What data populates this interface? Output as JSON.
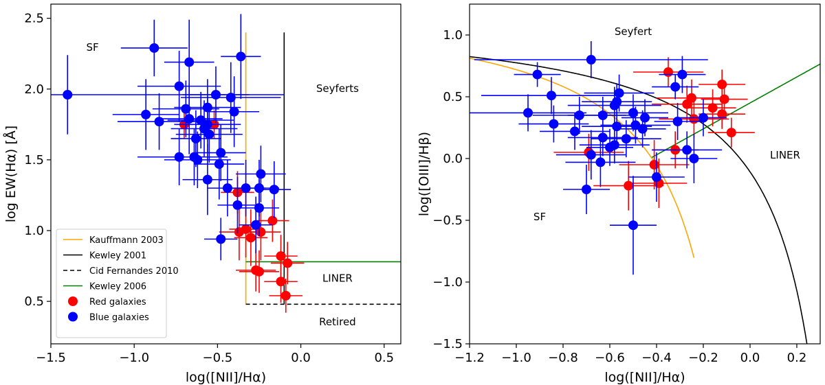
{
  "colors": {
    "red": "#ff0000",
    "blue": "#0000ff",
    "kauffmann": "#ffa500",
    "kewley2001": "#000000",
    "cid": "#000000",
    "kewley2006": "#008000"
  },
  "chart_data": [
    {
      "type": "scatter",
      "xlabel": "log([NII]/Hα)",
      "ylabel": "log EW(Hα) [Å]",
      "xlim": [
        -1.5,
        0.6
      ],
      "ylim": [
        0.2,
        2.6
      ],
      "xticks": [
        -1.5,
        -1.0,
        -0.5,
        0.0,
        0.5
      ],
      "xtick_labels": [
        "−1.5",
        "−1.0",
        "−0.5",
        "0.0",
        "0.5"
      ],
      "yticks": [
        0.5,
        1.0,
        1.5,
        2.0,
        2.5
      ],
      "ytick_labels": [
        "0.5",
        "1.0",
        "1.5",
        "2.0",
        "2.5"
      ],
      "regions": [
        {
          "text": "SF",
          "x": -1.25,
          "y": 2.27
        },
        {
          "text": "Seyferts",
          "x": 0.22,
          "y": 1.98
        },
        {
          "text": "LINER",
          "x": 0.22,
          "y": 0.64
        },
        {
          "text": "Retired",
          "x": 0.22,
          "y": 0.33
        }
      ],
      "lines": [
        {
          "name": "Kauffmann 2003",
          "color": "#ffa500",
          "dash": "",
          "points": [
            [
              -0.33,
              2.4
            ],
            [
              -0.33,
              0.48
            ]
          ]
        },
        {
          "name": "Kewley 2001",
          "color": "#000000",
          "dash": "",
          "points": [
            [
              -0.1,
              2.4
            ],
            [
              -0.1,
              0.48
            ]
          ]
        },
        {
          "name": "Cid Fernandes 2010",
          "color": "#000000",
          "dash": "6,4",
          "points": [
            [
              -0.33,
              0.48
            ],
            [
              0.6,
              0.48
            ]
          ]
        },
        {
          "name": "Kewley 2006",
          "color": "#008000",
          "dash": "",
          "points": [
            [
              -0.33,
              0.78
            ],
            [
              0.6,
              0.78
            ]
          ]
        }
      ],
      "legend": {
        "position": "lower-left",
        "entries": [
          {
            "label": "Kauffmann 2003",
            "kind": "line",
            "color": "#ffa500",
            "dash": ""
          },
          {
            "label": "Kewley 2001",
            "kind": "line",
            "color": "#000000",
            "dash": ""
          },
          {
            "label": "Cid Fernandes 2010",
            "kind": "line",
            "color": "#000000",
            "dash": "6,4"
          },
          {
            "label": "Kewley 2006",
            "kind": "line",
            "color": "#008000",
            "dash": ""
          },
          {
            "label": "Red galaxies",
            "kind": "marker",
            "color": "#ff0000"
          },
          {
            "label": "Blue galaxies",
            "kind": "marker",
            "color": "#0000ff"
          }
        ]
      },
      "series": [
        {
          "name": "Red galaxies",
          "color": "#ff0000",
          "points": [
            {
              "x": -0.7,
              "y": 1.75,
              "xerr": 0.05,
              "yerr": 0.1
            },
            {
              "x": -0.52,
              "y": 1.75,
              "xerr": 0.05,
              "yerr": 0.1
            },
            {
              "x": -0.38,
              "y": 1.27,
              "xerr": 0.1,
              "yerr": 0.15
            },
            {
              "x": -0.33,
              "y": 1.01,
              "xerr": 0.1,
              "yerr": 0.2
            },
            {
              "x": -0.37,
              "y": 0.99,
              "xerr": 0.12,
              "yerr": 0.2
            },
            {
              "x": -0.3,
              "y": 0.95,
              "xerr": 0.1,
              "yerr": 0.2
            },
            {
              "x": -0.24,
              "y": 0.99,
              "xerr": 0.12,
              "yerr": 0.2
            },
            {
              "x": -0.17,
              "y": 1.07,
              "xerr": 0.1,
              "yerr": 0.15
            },
            {
              "x": -0.27,
              "y": 0.72,
              "xerr": 0.12,
              "yerr": 0.15
            },
            {
              "x": -0.25,
              "y": 0.71,
              "xerr": 0.12,
              "yerr": 0.15
            },
            {
              "x": -0.12,
              "y": 0.82,
              "xerr": 0.1,
              "yerr": 0.15
            },
            {
              "x": -0.08,
              "y": 0.77,
              "xerr": 0.1,
              "yerr": 0.15
            },
            {
              "x": -0.12,
              "y": 0.64,
              "xerr": 0.1,
              "yerr": 0.15
            },
            {
              "x": -0.09,
              "y": 0.54,
              "xerr": 0.1,
              "yerr": 0.12
            }
          ]
        },
        {
          "name": "Blue galaxies",
          "color": "#0000ff",
          "points": [
            {
              "x": -1.4,
              "y": 1.96,
              "xerr": 1.3,
              "yerr": 0.28
            },
            {
              "x": -0.88,
              "y": 2.29,
              "xerr": 0.2,
              "yerr": 0.2
            },
            {
              "x": -0.67,
              "y": 2.19,
              "xerr": 0.15,
              "yerr": 0.3
            },
            {
              "x": -0.36,
              "y": 2.23,
              "xerr": 0.12,
              "yerr": 0.3
            },
            {
              "x": -0.73,
              "y": 2.02,
              "xerr": 0.25,
              "yerr": 0.25
            },
            {
              "x": -0.51,
              "y": 1.96,
              "xerr": 0.2,
              "yerr": 0.2
            },
            {
              "x": -0.42,
              "y": 1.94,
              "xerr": 0.3,
              "yerr": 0.25
            },
            {
              "x": -0.93,
              "y": 1.82,
              "xerr": 0.2,
              "yerr": 0.25
            },
            {
              "x": -0.69,
              "y": 1.86,
              "xerr": 0.2,
              "yerr": 0.2
            },
            {
              "x": -0.56,
              "y": 1.87,
              "xerr": 0.2,
              "yerr": 0.2
            },
            {
              "x": -0.4,
              "y": 1.84,
              "xerr": 0.15,
              "yerr": 0.25
            },
            {
              "x": -0.85,
              "y": 1.77,
              "xerr": 0.25,
              "yerr": 0.2
            },
            {
              "x": -0.67,
              "y": 1.79,
              "xerr": 0.2,
              "yerr": 0.25
            },
            {
              "x": -0.6,
              "y": 1.78,
              "xerr": 0.2,
              "yerr": 0.2
            },
            {
              "x": -0.56,
              "y": 1.75,
              "xerr": 0.2,
              "yerr": 0.2
            },
            {
              "x": -0.58,
              "y": 1.72,
              "xerr": 0.2,
              "yerr": 0.2
            },
            {
              "x": -0.63,
              "y": 1.65,
              "xerr": 0.15,
              "yerr": 0.2
            },
            {
              "x": -0.55,
              "y": 1.68,
              "xerr": 0.2,
              "yerr": 0.2
            },
            {
              "x": -0.48,
              "y": 1.55,
              "xerr": 0.15,
              "yerr": 0.2
            },
            {
              "x": -0.73,
              "y": 1.52,
              "xerr": 0.25,
              "yerr": 0.2
            },
            {
              "x": -0.64,
              "y": 1.52,
              "xerr": 0.2,
              "yerr": 0.2
            },
            {
              "x": -0.62,
              "y": 1.5,
              "xerr": 0.2,
              "yerr": 0.2
            },
            {
              "x": -0.49,
              "y": 1.47,
              "xerr": 0.15,
              "yerr": 0.25
            },
            {
              "x": -0.56,
              "y": 1.36,
              "xerr": 0.15,
              "yerr": 0.25
            },
            {
              "x": -0.24,
              "y": 1.4,
              "xerr": 0.15,
              "yerr": 0.2
            },
            {
              "x": -0.44,
              "y": 1.3,
              "xerr": 0.12,
              "yerr": 0.2
            },
            {
              "x": -0.33,
              "y": 1.3,
              "xerr": 0.12,
              "yerr": 0.2
            },
            {
              "x": -0.25,
              "y": 1.3,
              "xerr": 0.12,
              "yerr": 0.2
            },
            {
              "x": -0.16,
              "y": 1.29,
              "xerr": 0.1,
              "yerr": 0.2
            },
            {
              "x": -0.38,
              "y": 1.18,
              "xerr": 0.12,
              "yerr": 0.2
            },
            {
              "x": -0.25,
              "y": 1.16,
              "xerr": 0.12,
              "yerr": 0.2
            },
            {
              "x": -0.27,
              "y": 1.04,
              "xerr": 0.1,
              "yerr": 0.2
            },
            {
              "x": -0.48,
              "y": 0.94,
              "xerr": 0.1,
              "yerr": 0.15
            }
          ]
        }
      ]
    },
    {
      "type": "scatter",
      "xlabel": "log([NII]/Hα)",
      "ylabel": "log([OIII]/Hβ)",
      "xlim": [
        -1.2,
        0.3
      ],
      "ylim": [
        -1.5,
        1.25
      ],
      "xticks": [
        -1.2,
        -1.0,
        -0.8,
        -0.6,
        -0.4,
        -0.2,
        0.0,
        0.2
      ],
      "xtick_labels": [
        "−1.2",
        "−1.0",
        "−0.8",
        "−0.6",
        "−0.4",
        "−0.2",
        "0.0",
        "0.2"
      ],
      "yticks": [
        -1.5,
        -1.0,
        -0.5,
        0.0,
        0.5,
        1.0
      ],
      "ytick_labels": [
        "−1.5",
        "−1.0",
        "−0.5",
        "0.0",
        "0.5",
        "1.0"
      ],
      "regions": [
        {
          "text": "Seyfert",
          "x": -0.5,
          "y": 1.0
        },
        {
          "text": "SF",
          "x": -0.9,
          "y": -0.5
        },
        {
          "text": "LINER",
          "x": 0.15,
          "y": 0.0
        }
      ],
      "curves": [
        {
          "name": "Kauffmann 2003",
          "color": "#ffa500",
          "formula": "0.61/(x-0.05)+1.3",
          "x_from": -1.2,
          "x_to": -0.24
        },
        {
          "name": "Kewley 2001",
          "color": "#000000",
          "formula": "0.61/(x-0.47)+1.19",
          "x_from": -1.2,
          "x_to": 0.25
        },
        {
          "name": "Kewley 2006",
          "color": "#008000",
          "formula": "1.05*x+0.45",
          "x_from": -0.42,
          "x_to": 0.3
        }
      ],
      "series": [
        {
          "name": "Red galaxies",
          "color": "#ff0000",
          "points": [
            {
              "x": -0.35,
              "y": 0.7,
              "xerr": 0.15,
              "yerr": 0.12
            },
            {
              "x": -0.27,
              "y": 0.44,
              "xerr": 0.15,
              "yerr": 0.15
            },
            {
              "x": -0.25,
              "y": 0.49,
              "xerr": 0.15,
              "yerr": 0.15
            },
            {
              "x": -0.24,
              "y": 0.32,
              "xerr": 0.15,
              "yerr": 0.15
            },
            {
              "x": -0.16,
              "y": 0.41,
              "xerr": 0.1,
              "yerr": 0.15
            },
            {
              "x": -0.12,
              "y": 0.6,
              "xerr": 0.1,
              "yerr": 0.12
            },
            {
              "x": -0.11,
              "y": 0.48,
              "xerr": 0.1,
              "yerr": 0.12
            },
            {
              "x": -0.12,
              "y": 0.36,
              "xerr": 0.1,
              "yerr": 0.12
            },
            {
              "x": -0.08,
              "y": 0.21,
              "xerr": 0.1,
              "yerr": 0.12
            },
            {
              "x": -0.32,
              "y": 0.07,
              "xerr": 0.1,
              "yerr": 0.15
            },
            {
              "x": -0.69,
              "y": 0.05,
              "xerr": 0.15,
              "yerr": 0.15
            },
            {
              "x": -0.41,
              "y": -0.05,
              "xerr": 0.15,
              "yerr": 0.2
            },
            {
              "x": -0.52,
              "y": -0.22,
              "xerr": 0.15,
              "yerr": 0.2
            },
            {
              "x": -0.39,
              "y": -0.2,
              "xerr": 0.12,
              "yerr": 0.2
            }
          ]
        },
        {
          "name": "Blue galaxies",
          "color": "#0000ff",
          "points": [
            {
              "x": -0.68,
              "y": 0.8,
              "xerr": 0.5,
              "yerr": 0.15
            },
            {
              "x": -0.91,
              "y": 0.68,
              "xerr": 0.1,
              "yerr": 0.1
            },
            {
              "x": -0.29,
              "y": 0.68,
              "xerr": 0.1,
              "yerr": 0.15
            },
            {
              "x": -0.32,
              "y": 0.58,
              "xerr": 0.1,
              "yerr": 0.1
            },
            {
              "x": -0.56,
              "y": 0.53,
              "xerr": 0.15,
              "yerr": 0.15
            },
            {
              "x": -0.85,
              "y": 0.51,
              "xerr": 0.3,
              "yerr": 0.15
            },
            {
              "x": -0.57,
              "y": 0.46,
              "xerr": 0.15,
              "yerr": 0.15
            },
            {
              "x": -0.58,
              "y": 0.43,
              "xerr": 0.2,
              "yerr": 0.15
            },
            {
              "x": -0.95,
              "y": 0.37,
              "xerr": 0.25,
              "yerr": 0.15
            },
            {
              "x": -0.73,
              "y": 0.35,
              "xerr": 0.2,
              "yerr": 0.15
            },
            {
              "x": -0.63,
              "y": 0.35,
              "xerr": 0.15,
              "yerr": 0.15
            },
            {
              "x": -0.5,
              "y": 0.37,
              "xerr": 0.15,
              "yerr": 0.15
            },
            {
              "x": -0.45,
              "y": 0.33,
              "xerr": 0.1,
              "yerr": 0.15
            },
            {
              "x": -0.2,
              "y": 0.33,
              "xerr": 0.1,
              "yerr": 0.15
            },
            {
              "x": -0.31,
              "y": 0.3,
              "xerr": 0.1,
              "yerr": 0.15
            },
            {
              "x": -0.84,
              "y": 0.28,
              "xerr": 0.15,
              "yerr": 0.15
            },
            {
              "x": -0.49,
              "y": 0.27,
              "xerr": 0.15,
              "yerr": 0.15
            },
            {
              "x": -0.57,
              "y": 0.26,
              "xerr": 0.15,
              "yerr": 0.15
            },
            {
              "x": -0.46,
              "y": 0.24,
              "xerr": 0.1,
              "yerr": 0.15
            },
            {
              "x": -0.75,
              "y": 0.22,
              "xerr": 0.15,
              "yerr": 0.15
            },
            {
              "x": -0.63,
              "y": 0.17,
              "xerr": 0.15,
              "yerr": 0.15
            },
            {
              "x": -0.53,
              "y": 0.16,
              "xerr": 0.15,
              "yerr": 0.15
            },
            {
              "x": -0.58,
              "y": 0.11,
              "xerr": 0.15,
              "yerr": 0.15
            },
            {
              "x": -0.6,
              "y": 0.09,
              "xerr": 0.1,
              "yerr": 0.15
            },
            {
              "x": -0.27,
              "y": 0.07,
              "xerr": 0.15,
              "yerr": 0.15
            },
            {
              "x": -0.68,
              "y": 0.03,
              "xerr": 0.15,
              "yerr": 0.2
            },
            {
              "x": -0.24,
              "y": 0.0,
              "xerr": 0.1,
              "yerr": 0.2
            },
            {
              "x": -0.64,
              "y": -0.03,
              "xerr": 0.15,
              "yerr": 0.2
            },
            {
              "x": -0.4,
              "y": -0.15,
              "xerr": 0.12,
              "yerr": 0.2
            },
            {
              "x": -0.7,
              "y": -0.25,
              "xerr": 0.1,
              "yerr": 0.2
            },
            {
              "x": -0.5,
              "y": -0.54,
              "xerr": 0.1,
              "yerr": 0.4
            }
          ]
        }
      ]
    }
  ]
}
